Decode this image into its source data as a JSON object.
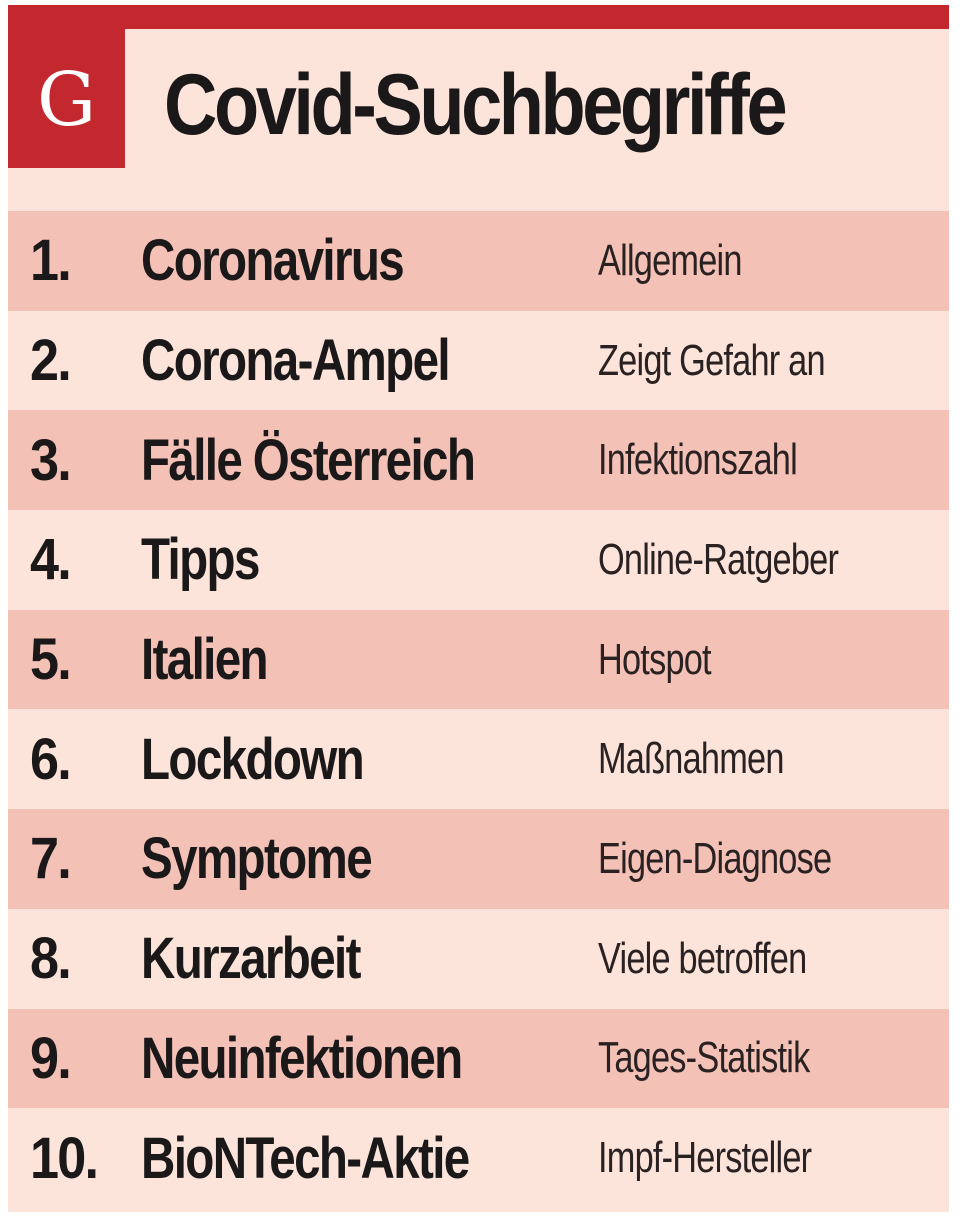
{
  "header": {
    "logo_letter": "G",
    "title": "Covid-Suchbegriffe"
  },
  "colors": {
    "brand_red": "#c3282e",
    "row_dark": "#f4c1b7",
    "row_light": "#fce4db",
    "text": "#1a1818"
  },
  "rows": [
    {
      "rank": "1.",
      "term": "Coronavirus",
      "description": "Allgemein"
    },
    {
      "rank": "2.",
      "term": "Corona-Ampel",
      "description": "Zeigt Gefahr an"
    },
    {
      "rank": "3.",
      "term": "Fälle Österreich",
      "description": "Infektionszahl"
    },
    {
      "rank": "4.",
      "term": "Tipps",
      "description": "Online-Ratgeber"
    },
    {
      "rank": "5.",
      "term": "Italien",
      "description": "Hotspot"
    },
    {
      "rank": "6.",
      "term": "Lockdown",
      "description": "Maßnahmen"
    },
    {
      "rank": "7.",
      "term": "Symptome",
      "description": "Eigen-Diagnose"
    },
    {
      "rank": "8.",
      "term": "Kurzarbeit",
      "description": "Viele betroffen"
    },
    {
      "rank": "9.",
      "term": "Neuinfektionen",
      "description": "Tages-Statistik"
    },
    {
      "rank": "10.",
      "term": "BioNTech-Aktie",
      "description": "Impf-Hersteller"
    }
  ]
}
